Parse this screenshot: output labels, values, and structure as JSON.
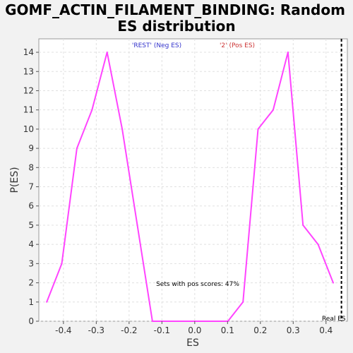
{
  "chart_data": {
    "type": "line",
    "title_line1": "GOMF_ACTIN_FILAMENT_BINDING: Random",
    "title_line2": "ES distribution",
    "xlabel": "ES",
    "ylabel": "P(ES)",
    "xlim": [
      -0.475,
      0.465
    ],
    "ylim": [
      0,
      14.7
    ],
    "x_ticks": [
      -0.4,
      -0.3,
      -0.2,
      -0.1,
      0.0,
      0.1,
      0.2,
      0.3,
      0.4
    ],
    "x_tick_labels": [
      "-0.4",
      "-0.3",
      "-0.2",
      "-0.1",
      "0.0",
      "0.1",
      "0.2",
      "0.3",
      "0.4"
    ],
    "y_ticks": [
      0,
      1,
      2,
      3,
      4,
      5,
      6,
      7,
      8,
      9,
      10,
      11,
      12,
      13,
      14
    ],
    "y_tick_labels": [
      "0",
      "1",
      "2",
      "3",
      "4",
      "5",
      "6",
      "7",
      "8",
      "9",
      "10",
      "11",
      "12",
      "13",
      "14"
    ],
    "grid": true,
    "series": [
      {
        "color": "#ff44ff",
        "points": [
          [
            -0.451,
            1
          ],
          [
            -0.405,
            3
          ],
          [
            -0.359,
            9
          ],
          [
            -0.313,
            11
          ],
          [
            -0.267,
            14
          ],
          [
            -0.221,
            10
          ],
          [
            -0.175,
            5
          ],
          [
            -0.129,
            0
          ],
          [
            -0.083,
            0
          ],
          [
            -0.037,
            0
          ],
          [
            0.009,
            0
          ],
          [
            0.055,
            0
          ],
          [
            0.101,
            0
          ],
          [
            0.147,
            1
          ],
          [
            0.193,
            10
          ],
          [
            0.239,
            11
          ],
          [
            0.284,
            14
          ],
          [
            0.33,
            5
          ],
          [
            0.376,
            4
          ],
          [
            0.422,
            2
          ]
        ]
      }
    ],
    "legend": [
      {
        "label": "'REST' (Neg ES)",
        "color": "#3333cc"
      },
      {
        "label": "'2' (Pos ES)",
        "color": "#cc3333"
      }
    ],
    "annotation": "Sets with pos scores: 47%",
    "real_es": {
      "x": 0.447,
      "label": "Real ES"
    }
  },
  "colors": {
    "background": "#f2f2f2",
    "plot_background": "#ffffff",
    "grid": "#e0e0e0",
    "line": "#ff44ff"
  }
}
